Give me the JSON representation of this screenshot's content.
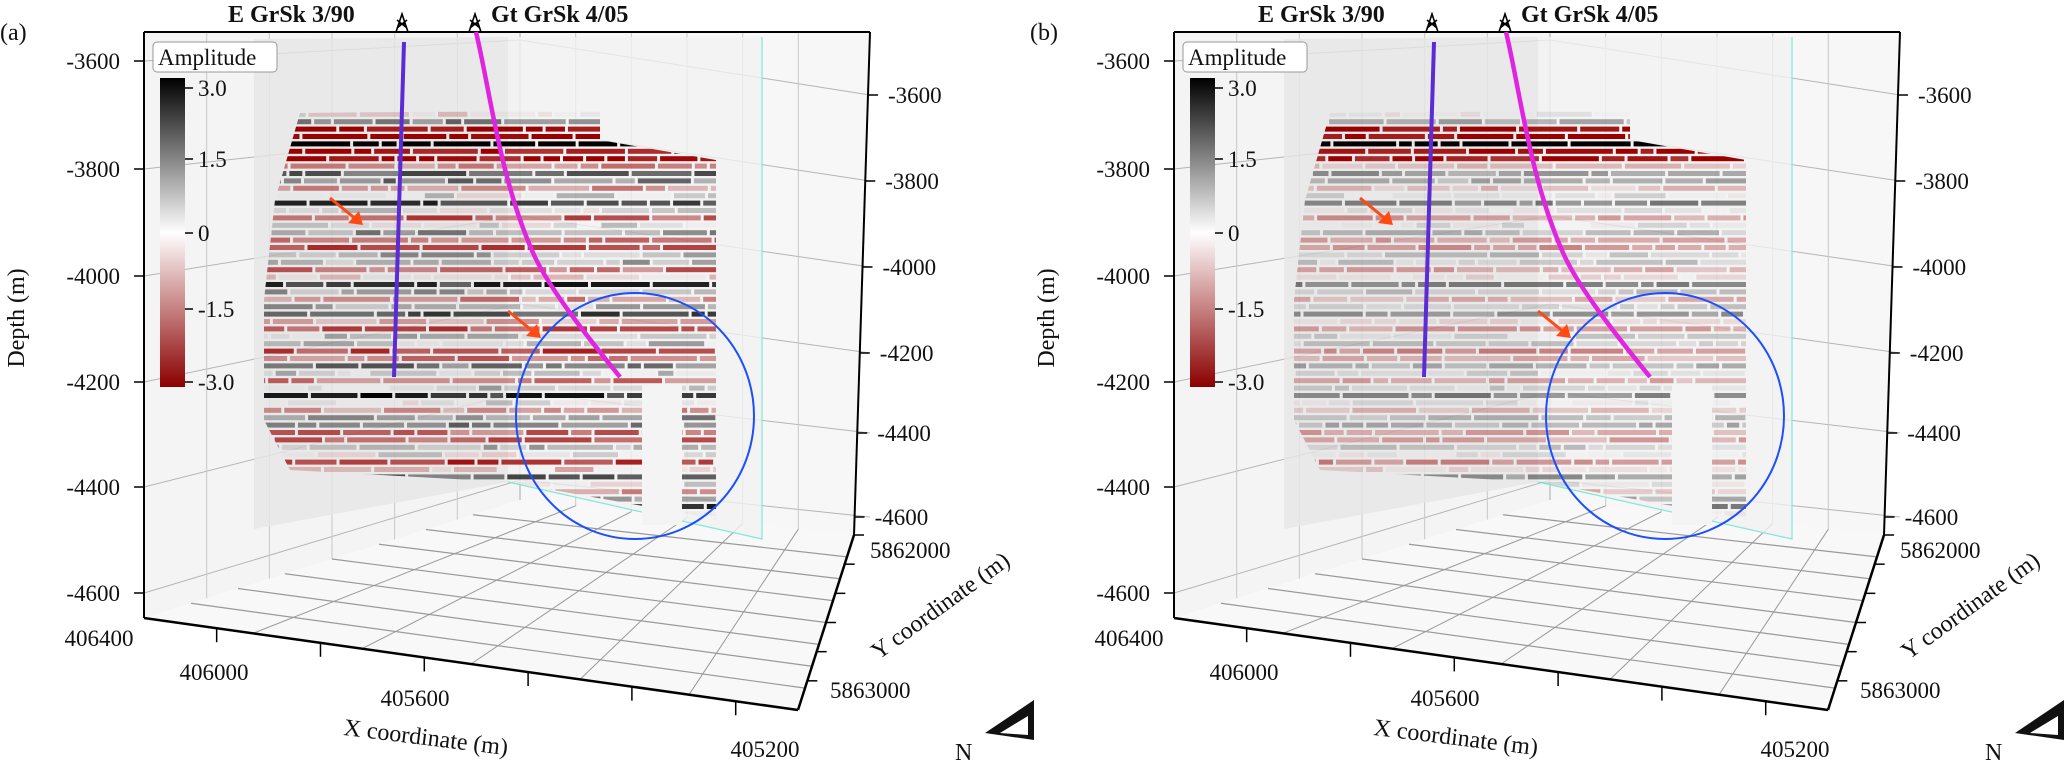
{
  "panels": [
    {
      "label": "(a)",
      "contrast": 1.0
    },
    {
      "label": "(b)",
      "contrast": 0.55
    }
  ],
  "wells": [
    {
      "name": "E GrSk 3/90",
      "color": "#5b2bd6"
    },
    {
      "name": "Gt GrSk 4/05",
      "color": "#e025e0"
    }
  ],
  "colors": {
    "highlight_ellipse": "#1a4fff",
    "arrow": "#ff4a14",
    "positive": "#000000",
    "negative": "#9b0000"
  },
  "chart_data": {
    "type": "3d-seismic-volume",
    "zlabel": "Depth (m)",
    "xlabel": "X coordinate (m)",
    "ylabel": "Y coordinate (m)",
    "z_ticks_left": [
      "-3600",
      "-3800",
      "-4000",
      "-4200",
      "-4400",
      "-4600"
    ],
    "z_ticks_right": [
      "-3600",
      "-3800",
      "-4000",
      "-4200",
      "-4400",
      "-4600"
    ],
    "x_ticks": [
      "406400",
      "406000",
      "405600",
      "405200"
    ],
    "y_ticks": [
      "5862000",
      "5863000"
    ],
    "zlim": [
      -4600,
      -3600
    ],
    "colorbar": {
      "title": "Amplitude",
      "ticks": [
        "3.0",
        "1.5",
        "0",
        "-1.5",
        "-3.0"
      ],
      "range": [
        -3.0,
        3.0
      ],
      "colormap": "dark red - white - black"
    },
    "north_label": "N",
    "grid": true
  }
}
